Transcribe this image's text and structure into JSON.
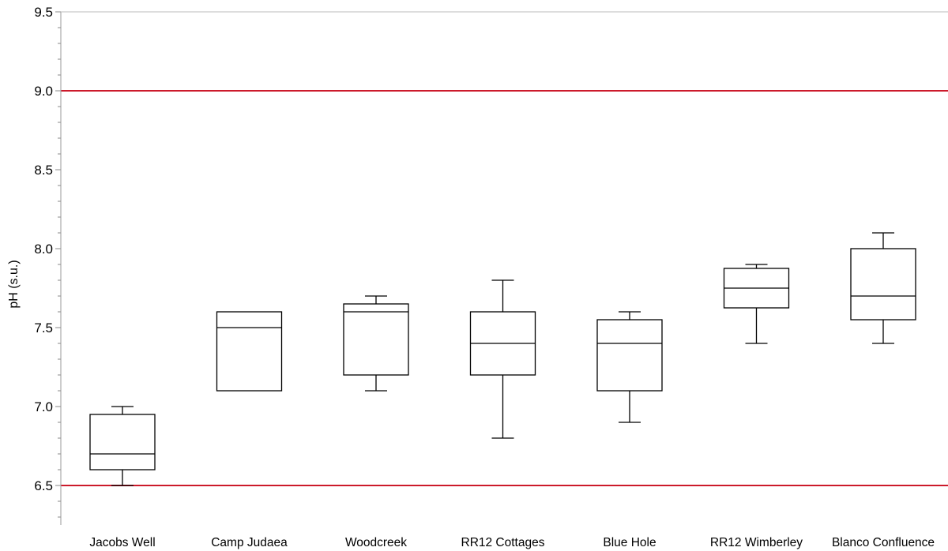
{
  "chart_data": {
    "type": "boxplot",
    "title": "",
    "xlabel": "",
    "ylabel": "pH (s.u.)",
    "ylim": [
      6.25,
      9.5
    ],
    "y_ticks": [
      "6.5",
      "7.0",
      "7.5",
      "8.0",
      "8.5",
      "9.0",
      "9.5"
    ],
    "y_tick_values": [
      6.5,
      7.0,
      7.5,
      8.0,
      8.5,
      9.0,
      9.5
    ],
    "grid": false,
    "reference_lines": [
      {
        "value": 9.0,
        "color": "#cc1a2b"
      },
      {
        "value": 6.5,
        "color": "#cc1a2b"
      }
    ],
    "categories": [
      "Jacobs Well",
      "Camp Judaea",
      "Woodcreek",
      "RR12 Cottages",
      "Blue Hole",
      "RR12 Wimberley",
      "Blanco Confluence"
    ],
    "boxes": [
      {
        "min": 6.5,
        "q1": 6.6,
        "median": 6.7,
        "q3": 6.95,
        "max": 7.0
      },
      {
        "min": 7.1,
        "q1": 7.1,
        "median": 7.5,
        "q3": 7.6,
        "max": 7.6
      },
      {
        "min": 7.1,
        "q1": 7.2,
        "median": 7.6,
        "q3": 7.65,
        "max": 7.7
      },
      {
        "min": 6.8,
        "q1": 7.2,
        "median": 7.4,
        "q3": 7.6,
        "max": 7.8
      },
      {
        "min": 6.9,
        "q1": 7.1,
        "median": 7.4,
        "q3": 7.55,
        "max": 7.6
      },
      {
        "min": 7.4,
        "q1": 7.625,
        "median": 7.75,
        "q3": 7.875,
        "max": 7.9
      },
      {
        "min": 7.4,
        "q1": 7.55,
        "median": 7.7,
        "q3": 8.0,
        "max": 8.1
      }
    ]
  }
}
